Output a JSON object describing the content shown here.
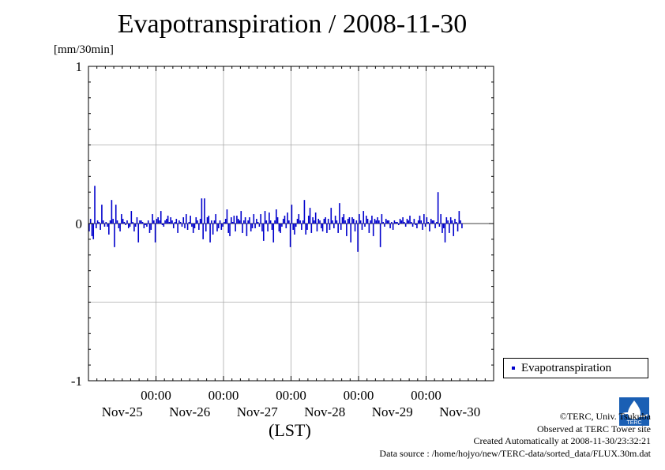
{
  "title": "Evapotranspiration / 2008-11-30",
  "unit_label": "[mm/30min]",
  "lst_label": "(LST)",
  "legend_label": "Evapotranspiration",
  "credits": {
    "copyright": "©TERC, Univ. Tsukuba",
    "observed": "Observed at TERC Tower site",
    "created": "Created Automatically at 2008-11-30/23:32:21",
    "source": "Data source : /home/hojyo/new/TERC-data/sorted_data/FLUX.30m.dat"
  },
  "logo_text": "TERC",
  "colors": {
    "series": "#0000cc",
    "grid": "#aaaaaa",
    "axis": "#000000"
  },
  "chart_data": {
    "type": "bar",
    "title": "Evapotranspiration / 2008-11-30",
    "ylabel": "[mm/30min]",
    "xlabel": "(LST)",
    "ylim": [
      -1,
      1
    ],
    "y_ticks": [
      "1",
      "0",
      "-1"
    ],
    "y_tick_values": [
      1,
      0,
      -1
    ],
    "x_tick_times": [
      "00:00",
      "00:00",
      "00:00",
      "00:00",
      "00:00"
    ],
    "x_tick_days": [
      "Nov-25",
      "Nov-26",
      "Nov-27",
      "Nov-28",
      "Nov-29",
      "Nov-30"
    ],
    "grid": true,
    "legend_position": "bottom-right",
    "series": [
      {
        "name": "Evapotranspiration",
        "interval_minutes": 30,
        "values": [
          -0.05,
          0.03,
          -0.08,
          -0.1,
          0.24,
          -0.03,
          0.02,
          0.01,
          -0.04,
          0.12,
          0.02,
          -0.02,
          0.01,
          -0.02,
          -0.07,
          0.02,
          0.15,
          0.03,
          -0.15,
          0.12,
          0.02,
          -0.03,
          -0.05,
          0.06,
          0.03,
          0.01,
          -0.01,
          0.02,
          -0.03,
          -0.02,
          0.08,
          0.01,
          -0.05,
          -0.02,
          0.04,
          -0.12,
          0.02,
          0.02,
          0.01,
          -0.03,
          -0.01,
          -0.02,
          0.02,
          -0.06,
          -0.04,
          0.06,
          0.02,
          -0.12,
          0.03,
          0.04,
          0.02,
          0.08,
          -0.01,
          -0.02,
          0.02,
          0.03,
          0.05,
          0.01,
          0.04,
          0.02,
          -0.03,
          0.01,
          0.03,
          -0.06,
          0.02,
          0.01,
          -0.02,
          0.04,
          -0.03,
          0.06,
          -0.04,
          0.01,
          0.05,
          -0.02,
          -0.06,
          -0.03,
          0.04,
          0.02,
          -0.04,
          0.03,
          0.16,
          -0.1,
          0.16,
          -0.05,
          0.04,
          0.05,
          -0.12,
          0.02,
          -0.07,
          0.02,
          0.06,
          -0.05,
          -0.03,
          0.02,
          -0.04,
          -0.02,
          0.01,
          0.03,
          0.09,
          -0.06,
          -0.08,
          0.04,
          0.01,
          0.05,
          -0.05,
          0.05,
          0.03,
          0.02,
          0.08,
          -0.06,
          0.02,
          0.04,
          -0.08,
          0.02,
          0.04,
          -0.05,
          -0.03,
          0.06,
          -0.03,
          0.03,
          0.01,
          -0.02,
          0.06,
          -0.05,
          -0.11,
          0.08,
          0.02,
          -0.05,
          0.07,
          0.02,
          -0.04,
          -0.12,
          0.02,
          0.09,
          0.04,
          -0.05,
          -0.06,
          -0.02,
          0.03,
          0.05,
          -0.03,
          0.07,
          0.02,
          -0.15,
          0.12,
          -0.04,
          -0.07,
          -0.02,
          0.03,
          0.06,
          0.02,
          -0.04,
          0.02,
          0.15,
          -0.07,
          -0.04,
          0.05,
          0.1,
          -0.06,
          0.04,
          0.02,
          0.07,
          -0.05,
          0.03,
          0.02,
          -0.03,
          -0.05,
          0.03,
          0.04,
          -0.06,
          0.03,
          -0.04,
          0.1,
          0.02,
          -0.03,
          0.05,
          0.02,
          -0.06,
          0.13,
          -0.04,
          0.04,
          0.06,
          0.02,
          -0.08,
          0.03,
          0.04,
          -0.12,
          0.04,
          0.03,
          -0.05,
          0.02,
          -0.18,
          0.06,
          0.02,
          -0.04,
          0.08,
          -0.02,
          0.05,
          0.03,
          -0.06,
          0.02,
          0.05,
          -0.08,
          0.03,
          0.02,
          0.04,
          0.02,
          -0.15,
          0.06,
          0.01,
          -0.02,
          0.03,
          0.02,
          0.02,
          -0.03,
          0.01,
          -0.04,
          0.02,
          0.01,
          0.01,
          -0.01,
          0.03,
          0.02,
          0.04,
          0.01,
          -0.02,
          0.03,
          0.02,
          0.05,
          0.01,
          -0.02,
          0.03,
          -0.01,
          -0.03,
          0.02,
          0.05,
          0.02,
          -0.04,
          0.06,
          -0.02,
          0.04,
          0.01,
          -0.05,
          0.03,
          0.02,
          0.02,
          -0.03,
          0.01,
          0.2,
          -0.02,
          0.06,
          -0.06,
          -0.03,
          -0.12,
          0.04,
          0.02,
          -0.06,
          0.04,
          0.02,
          -0.08,
          0.03,
          0.01,
          -0.05,
          0.08,
          0.02,
          -0.03
        ]
      }
    ]
  }
}
